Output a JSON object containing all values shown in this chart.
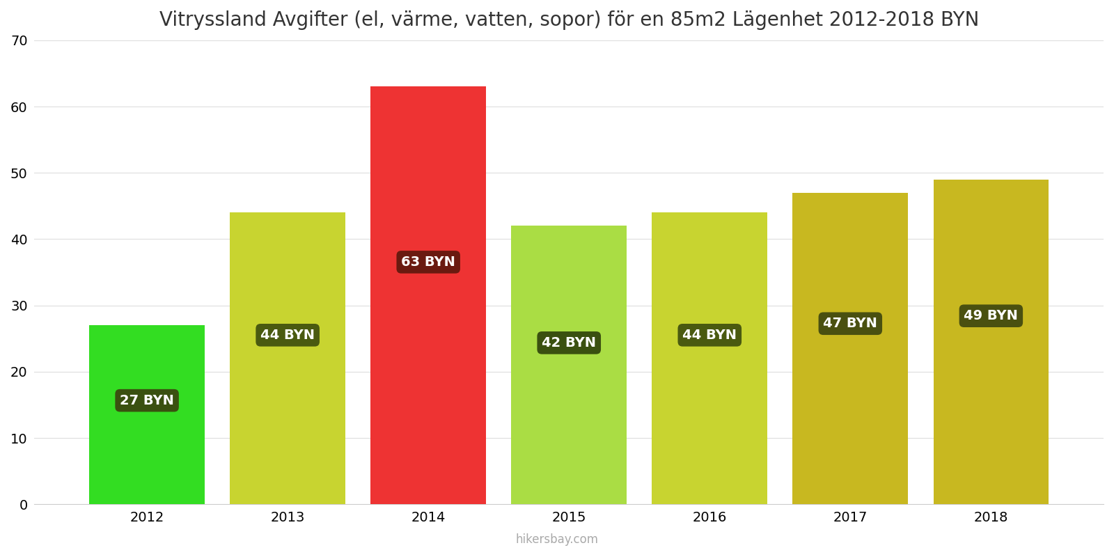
{
  "title": "Vitryssland Avgifter (el, värme, vatten, sopor) för en 85m2 Lägenhet 2012-2018 BYN",
  "years": [
    2012,
    2013,
    2014,
    2015,
    2016,
    2017,
    2018
  ],
  "values": [
    27,
    44,
    63,
    42,
    44,
    47,
    49
  ],
  "bar_colors": [
    "#33dd22",
    "#c8d430",
    "#ee3333",
    "#aadd44",
    "#c8d430",
    "#c8b820",
    "#c8b820"
  ],
  "label_box_colors": [
    "#3a5010",
    "#4a5a10",
    "#6a1a10",
    "#3a5010",
    "#4a5a10",
    "#4a5010",
    "#4a5010"
  ],
  "ylim": [
    0,
    70
  ],
  "yticks": [
    0,
    10,
    20,
    30,
    40,
    50,
    60,
    70
  ],
  "background_color": "#ffffff",
  "watermark": "hikersbay.com",
  "title_fontsize": 20,
  "tick_fontsize": 14,
  "bar_width": 0.82,
  "xlim": [
    2011.2,
    2018.8
  ]
}
